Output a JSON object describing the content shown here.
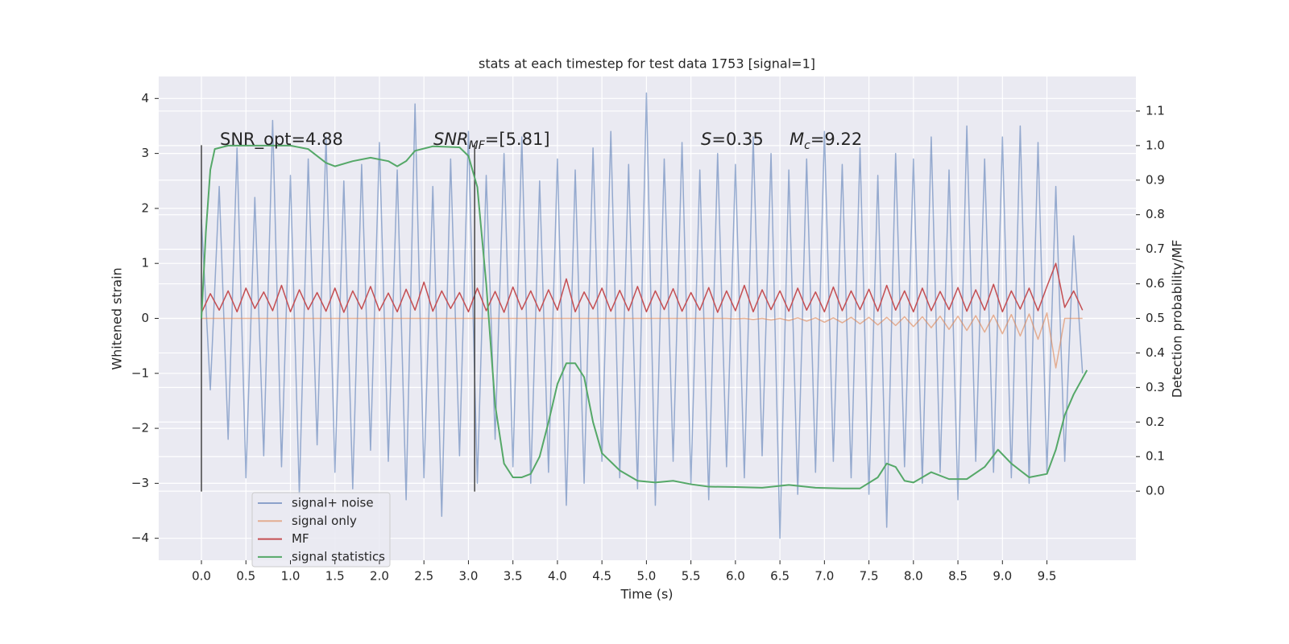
{
  "chart_data": {
    "type": "line",
    "title": "stats at each timestep for test data 1753 [signal=1]",
    "xlabel": "Time (s)",
    "ylabel": "Whitened strain",
    "y2label": "Detection probability/MF",
    "xlim": [
      -0.48,
      10.5
    ],
    "ylim": [
      -4.4,
      4.4
    ],
    "y2lim": [
      -0.2,
      1.2
    ],
    "xticks": [
      {
        "value": 0,
        "label": "0.0"
      },
      0.5,
      {
        "value": 1,
        "label": "1.0"
      },
      1.5,
      {
        "value": 2,
        "label": "2.0"
      },
      2.5,
      {
        "value": 3,
        "label": "3.0"
      },
      3.5,
      {
        "value": 4,
        "label": "4.0"
      },
      4.5,
      {
        "value": 5,
        "label": "5.0"
      },
      5.5,
      {
        "value": 6,
        "label": "6.0"
      },
      6.5,
      {
        "value": 7,
        "label": "7.0"
      },
      7.5,
      {
        "value": 8,
        "label": "8.0"
      },
      8.5,
      {
        "value": 9,
        "label": "9.0"
      },
      9.5
    ],
    "yticks": [
      {
        "value": -4,
        "label": "−4"
      },
      {
        "value": -3,
        "label": "−3"
      },
      {
        "value": -2,
        "label": "−2"
      },
      {
        "value": -1,
        "label": "−1"
      },
      0,
      1,
      2,
      3,
      4
    ],
    "y2ticks": [
      {
        "value": 0,
        "label": "0.0"
      },
      0.1,
      0.2,
      0.3,
      0.4,
      0.5,
      0.6,
      0.7,
      0.8,
      0.9,
      {
        "value": 1,
        "label": "1.0"
      },
      1.1
    ],
    "grid": true,
    "x": [
      0,
      0.1,
      0.2,
      0.3,
      0.4,
      0.5,
      0.6,
      0.7,
      0.8,
      0.9,
      1,
      1.1,
      1.2,
      1.3,
      1.4,
      1.5,
      1.6,
      1.7,
      1.8,
      1.9,
      2,
      2.1,
      2.2,
      2.3,
      2.4,
      2.5,
      2.6,
      2.7,
      2.8,
      2.9,
      3,
      3.1,
      3.2,
      3.3,
      3.4,
      3.5,
      3.6,
      3.7,
      3.8,
      3.9,
      4,
      4.1,
      4.2,
      4.3,
      4.4,
      4.5,
      4.6,
      4.7,
      4.8,
      4.9,
      5,
      5.1,
      5.2,
      5.3,
      5.4,
      5.5,
      5.6,
      5.7,
      5.8,
      5.9,
      6,
      6.1,
      6.2,
      6.3,
      6.4,
      6.5,
      6.6,
      6.7,
      6.8,
      6.9,
      7,
      7.1,
      7.2,
      7.3,
      7.4,
      7.5,
      7.6,
      7.7,
      7.8,
      7.9,
      8,
      8.1,
      8.2,
      8.3,
      8.4,
      8.5,
      8.6,
      8.7,
      8.8,
      8.9,
      9,
      9.1,
      9.2,
      9.3,
      9.4,
      9.5,
      9.6,
      9.7,
      9.8,
      9.9
    ],
    "series": [
      {
        "name": "signal+ noise",
        "color": "#4c72b0",
        "values": [
          1.8,
          -1.3,
          2.4,
          -2.2,
          3.1,
          -2.9,
          2.2,
          -2.5,
          3.6,
          -2.7,
          2.6,
          -3.2,
          2.9,
          -2.3,
          3.3,
          -2.8,
          2.5,
          -3.1,
          2.8,
          -2.4,
          3.2,
          -2.6,
          2.7,
          -3.3,
          3.9,
          -2.9,
          2.4,
          -3.6,
          2.9,
          -2.5,
          3.4,
          -3.0,
          2.6,
          -2.2,
          3.0,
          -2.7,
          3.3,
          -3.0,
          2.5,
          -2.8,
          2.9,
          -3.4,
          2.7,
          -3.0,
          3.1,
          -2.6,
          3.4,
          -2.9,
          2.8,
          -3.1,
          4.1,
          -3.4,
          2.9,
          -2.6,
          3.2,
          -3.0,
          2.7,
          -3.3,
          3.0,
          -2.7,
          2.8,
          -2.9,
          3.3,
          -2.5,
          3.0,
          -4.0,
          2.7,
          -3.2,
          2.9,
          -2.8,
          3.4,
          -2.6,
          2.8,
          -2.9,
          3.1,
          -3.2,
          2.6,
          -3.8,
          3.0,
          -2.7,
          2.9,
          -3.0,
          3.3,
          -2.8,
          2.7,
          -3.3,
          3.5,
          -2.6,
          2.9,
          -2.8,
          3.3,
          -2.9,
          3.5,
          -3.0,
          3.2,
          -2.8,
          2.4,
          -2.6,
          1.5,
          -1.0
        ]
      },
      {
        "name": "signal only",
        "color": "#dd8452",
        "values": [
          0,
          0,
          0,
          0,
          0,
          0,
          0,
          0,
          0,
          0,
          0,
          0,
          0,
          0,
          0,
          0,
          0,
          0,
          0,
          0,
          0,
          0,
          0,
          0,
          0,
          0,
          0,
          0,
          0,
          0,
          0,
          0,
          0,
          0,
          0,
          0,
          0,
          0,
          0,
          0,
          0,
          0,
          0,
          0,
          0,
          0,
          0,
          0,
          0,
          0,
          0,
          0,
          0,
          0,
          0,
          0,
          0,
          0,
          0,
          0,
          -0.01,
          0,
          -0.02,
          0,
          -0.03,
          0,
          -0.04,
          0.01,
          -0.05,
          0.01,
          -0.07,
          0.01,
          -0.08,
          0.02,
          -0.1,
          0.02,
          -0.12,
          0.02,
          -0.13,
          0.03,
          -0.15,
          0.03,
          -0.17,
          0.04,
          -0.2,
          0.04,
          -0.22,
          0.05,
          -0.25,
          0.06,
          -0.28,
          0.07,
          -0.32,
          0.08,
          -0.38,
          0.1,
          -0.9,
          0,
          0,
          0
        ]
      },
      {
        "name": "MF",
        "color": "#c44e52",
        "values": [
          0.1,
          0.45,
          0.15,
          0.5,
          0.12,
          0.55,
          0.18,
          0.48,
          0.14,
          0.6,
          0.12,
          0.52,
          0.16,
          0.47,
          0.13,
          0.55,
          0.11,
          0.5,
          0.17,
          0.58,
          0.14,
          0.46,
          0.12,
          0.53,
          0.15,
          0.66,
          0.13,
          0.5,
          0.18,
          0.47,
          0.12,
          0.55,
          0.14,
          0.49,
          0.11,
          0.57,
          0.16,
          0.5,
          0.13,
          0.52,
          0.15,
          0.72,
          0.12,
          0.48,
          0.17,
          0.55,
          0.13,
          0.51,
          0.14,
          0.58,
          0.12,
          0.5,
          0.16,
          0.54,
          0.13,
          0.47,
          0.15,
          0.56,
          0.11,
          0.5,
          0.14,
          0.6,
          0.12,
          0.52,
          0.16,
          0.5,
          0.13,
          0.55,
          0.15,
          0.48,
          0.12,
          0.57,
          0.14,
          0.5,
          0.16,
          0.53,
          0.13,
          0.6,
          0.15,
          0.5,
          0.12,
          0.55,
          0.14,
          0.49,
          0.16,
          0.56,
          0.13,
          0.52,
          0.15,
          0.62,
          0.12,
          0.5,
          0.17,
          0.55,
          0.14,
          0.58,
          1.0,
          0.2,
          0.5,
          0.15
        ]
      },
      {
        "name": "signal statistics",
        "color": "#55a868",
        "axis": "y2",
        "x": [
          0,
          0.05,
          0.1,
          0.15,
          0.3,
          0.5,
          1.0,
          1.2,
          1.4,
          1.5,
          1.7,
          1.9,
          2.1,
          2.2,
          2.3,
          2.4,
          2.6,
          2.9,
          3.0,
          3.1,
          3.2,
          3.3,
          3.4,
          3.5,
          3.6,
          3.7,
          3.8,
          3.9,
          4.0,
          4.1,
          4.2,
          4.3,
          4.4,
          4.5,
          4.7,
          4.9,
          5.1,
          5.3,
          5.5,
          5.7,
          6.0,
          6.3,
          6.6,
          6.9,
          7.2,
          7.4,
          7.6,
          7.7,
          7.8,
          7.9,
          8.0,
          8.2,
          8.4,
          8.6,
          8.8,
          8.95,
          9.1,
          9.3,
          9.5,
          9.6,
          9.7,
          9.8,
          9.95
        ],
        "values": [
          0.5,
          0.75,
          0.93,
          0.99,
          1.0,
          1.0,
          1.0,
          0.99,
          0.95,
          0.94,
          0.955,
          0.965,
          0.955,
          0.94,
          0.955,
          0.985,
          0.998,
          0.995,
          0.97,
          0.88,
          0.6,
          0.25,
          0.08,
          0.04,
          0.04,
          0.05,
          0.1,
          0.2,
          0.31,
          0.37,
          0.37,
          0.33,
          0.2,
          0.11,
          0.06,
          0.03,
          0.025,
          0.03,
          0.02,
          0.013,
          0.012,
          0.01,
          0.018,
          0.01,
          0.008,
          0.008,
          0.04,
          0.08,
          0.07,
          0.03,
          0.025,
          0.055,
          0.035,
          0.035,
          0.07,
          0.12,
          0.08,
          0.04,
          0.05,
          0.12,
          0.22,
          0.28,
          0.35
        ]
      }
    ],
    "vlines": {
      "x": [
        0,
        3.07
      ],
      "ymin": -3.15,
      "ymax": 3.15
    },
    "annotations": {
      "snr_opt": "SNR_opt=4.88",
      "snr_mf": {
        "main": "SNR",
        "sub": "MF",
        "rest": "=[5.81]"
      },
      "s": {
        "main": "S",
        "rest": "=0.35"
      },
      "mc": {
        "main": "M",
        "sub": "c",
        "rest": "=9.22"
      }
    }
  }
}
